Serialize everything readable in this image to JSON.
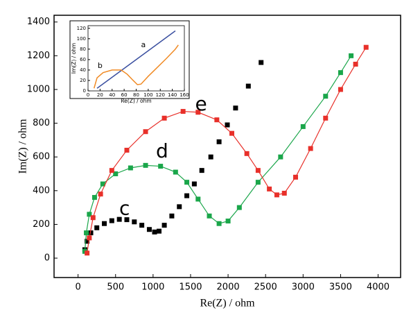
{
  "chart_data": [
    {
      "type": "line",
      "xlabel": "Re(Z) / ohm",
      "ylabel": "Im(Z) / ohm",
      "xlim": [
        -320,
        4300
      ],
      "ylim": [
        -115,
        1440
      ],
      "xticks": [
        0,
        500,
        1000,
        1500,
        2000,
        2500,
        3000,
        3500,
        4000
      ],
      "yticks": [
        0,
        200,
        400,
        600,
        800,
        1000,
        1200,
        1400
      ],
      "series": [
        {
          "name": "c",
          "color": "#000000",
          "line": false,
          "x": [
            90,
            120,
            170,
            250,
            350,
            450,
            550,
            650,
            750,
            850,
            950,
            1020,
            1080,
            1150,
            1250,
            1350,
            1450,
            1550,
            1650,
            1770,
            1880,
            1990,
            2100,
            2270,
            2440
          ],
          "values": [
            50,
            100,
            150,
            180,
            205,
            222,
            230,
            228,
            215,
            195,
            170,
            155,
            160,
            195,
            250,
            305,
            370,
            440,
            520,
            600,
            690,
            790,
            890,
            1020,
            1160
          ]
        },
        {
          "name": "d",
          "color": "#1aa64a",
          "line": true,
          "x": [
            90,
            110,
            150,
            220,
            330,
            500,
            700,
            900,
            1100,
            1300,
            1450,
            1600,
            1750,
            1880,
            2000,
            2150,
            2400,
            2700,
            3000,
            3300,
            3500,
            3640
          ],
          "values": [
            40,
            150,
            260,
            360,
            440,
            500,
            535,
            550,
            545,
            510,
            450,
            350,
            250,
            205,
            220,
            300,
            450,
            600,
            780,
            960,
            1100,
            1200
          ]
        },
        {
          "name": "e",
          "color": "#e8302a",
          "line": true,
          "x": [
            120,
            150,
            200,
            300,
            450,
            650,
            900,
            1150,
            1400,
            1600,
            1850,
            2050,
            2250,
            2400,
            2550,
            2650,
            2750,
            2900,
            3100,
            3300,
            3500,
            3700,
            3840
          ],
          "values": [
            30,
            120,
            240,
            380,
            520,
            640,
            750,
            830,
            870,
            865,
            820,
            740,
            620,
            520,
            410,
            375,
            385,
            480,
            650,
            830,
            1000,
            1150,
            1250
          ]
        }
      ],
      "annotations": [
        {
          "text": "c",
          "x": 620,
          "y": 290
        },
        {
          "text": "d",
          "x": 1120,
          "y": 630
        },
        {
          "text": "e",
          "x": 1640,
          "y": 910
        }
      ]
    },
    {
      "type": "line",
      "xlabel": "Re(Z) / ohm",
      "ylabel": "Im(Z) / ohm",
      "xlim": [
        0,
        160
      ],
      "ylim": [
        0,
        125
      ],
      "xticks": [
        0,
        20,
        40,
        60,
        80,
        100,
        120,
        140,
        160
      ],
      "yticks": [
        0,
        20,
        40,
        60,
        80,
        100,
        120
      ],
      "series": [
        {
          "name": "a",
          "color": "#3a4fa0",
          "line": true,
          "x": [
            15,
            145
          ],
          "values": [
            5,
            115
          ]
        },
        {
          "name": "b",
          "color": "#f08a24",
          "line": true,
          "x": [
            10,
            15,
            25,
            40,
            55,
            65,
            75,
            82,
            88,
            100,
            115,
            130,
            145,
            150
          ],
          "values": [
            5,
            25,
            35,
            40,
            40,
            32,
            20,
            12,
            13,
            28,
            45,
            62,
            80,
            88
          ]
        }
      ],
      "annotations": [
        {
          "text": "a",
          "x": 92,
          "y": 88
        },
        {
          "text": "b",
          "x": 20,
          "y": 48
        }
      ]
    }
  ]
}
